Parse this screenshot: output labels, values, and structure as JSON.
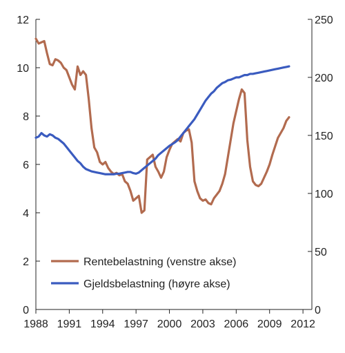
{
  "chart_data": {
    "type": "line",
    "title": "",
    "xlabel": "",
    "ylabel": "",
    "y2label": "",
    "xlim": [
      1988,
      2012.8
    ],
    "ylim": [
      0,
      12
    ],
    "y2lim": [
      0,
      250
    ],
    "x_ticks": [
      "1988",
      "1991",
      "1994",
      "1997",
      "2000",
      "2003",
      "2006",
      "2009",
      "2012"
    ],
    "y_ticks": [
      "0",
      "2",
      "4",
      "6",
      "8",
      "10",
      "12"
    ],
    "y2_ticks": [
      "0",
      "50",
      "100",
      "150",
      "200",
      "250"
    ],
    "grid": false,
    "legend_position": "bottom-left",
    "series": [
      {
        "name": "Rentebelastning (venstre akse)",
        "axis": "left",
        "color": "#b26b4f",
        "points": [
          [
            1988.0,
            11.2
          ],
          [
            1988.25,
            11.0
          ],
          [
            1988.5,
            11.05
          ],
          [
            1988.75,
            11.1
          ],
          [
            1989.0,
            10.6
          ],
          [
            1989.25,
            10.15
          ],
          [
            1989.5,
            10.1
          ],
          [
            1989.75,
            10.35
          ],
          [
            1990.0,
            10.3
          ],
          [
            1990.25,
            10.2
          ],
          [
            1990.5,
            10.0
          ],
          [
            1990.75,
            9.9
          ],
          [
            1991.0,
            9.6
          ],
          [
            1991.25,
            9.3
          ],
          [
            1991.5,
            9.1
          ],
          [
            1991.75,
            10.05
          ],
          [
            1992.0,
            9.7
          ],
          [
            1992.25,
            9.85
          ],
          [
            1992.5,
            9.7
          ],
          [
            1992.75,
            8.7
          ],
          [
            1993.0,
            7.5
          ],
          [
            1993.25,
            6.7
          ],
          [
            1993.5,
            6.5
          ],
          [
            1993.75,
            6.1
          ],
          [
            1994.0,
            6.0
          ],
          [
            1994.25,
            6.1
          ],
          [
            1994.5,
            5.85
          ],
          [
            1994.75,
            5.7
          ],
          [
            1995.0,
            5.6
          ],
          [
            1995.25,
            5.65
          ],
          [
            1995.5,
            5.55
          ],
          [
            1995.75,
            5.6
          ],
          [
            1996.0,
            5.3
          ],
          [
            1996.25,
            5.2
          ],
          [
            1996.5,
            4.9
          ],
          [
            1996.75,
            4.5
          ],
          [
            1997.0,
            4.6
          ],
          [
            1997.25,
            4.7
          ],
          [
            1997.5,
            4.0
          ],
          [
            1997.75,
            4.1
          ],
          [
            1998.0,
            6.2
          ],
          [
            1998.25,
            6.3
          ],
          [
            1998.5,
            6.4
          ],
          [
            1998.75,
            5.9
          ],
          [
            1999.0,
            5.7
          ],
          [
            1999.25,
            5.45
          ],
          [
            1999.5,
            5.7
          ],
          [
            1999.75,
            6.3
          ],
          [
            2000.0,
            6.6
          ],
          [
            2000.25,
            6.85
          ],
          [
            2000.5,
            6.95
          ],
          [
            2000.75,
            7.05
          ],
          [
            2001.0,
            6.95
          ],
          [
            2001.25,
            7.3
          ],
          [
            2001.5,
            7.4
          ],
          [
            2001.75,
            7.45
          ],
          [
            2002.0,
            6.9
          ],
          [
            2002.25,
            5.3
          ],
          [
            2002.5,
            4.9
          ],
          [
            2002.75,
            4.6
          ],
          [
            2003.0,
            4.5
          ],
          [
            2003.25,
            4.55
          ],
          [
            2003.5,
            4.4
          ],
          [
            2003.75,
            4.35
          ],
          [
            2004.0,
            4.6
          ],
          [
            2004.25,
            4.75
          ],
          [
            2004.5,
            4.9
          ],
          [
            2004.75,
            5.2
          ],
          [
            2005.0,
            5.6
          ],
          [
            2005.25,
            6.3
          ],
          [
            2005.5,
            7.0
          ],
          [
            2005.75,
            7.7
          ],
          [
            2006.0,
            8.2
          ],
          [
            2006.25,
            8.7
          ],
          [
            2006.5,
            9.1
          ],
          [
            2006.75,
            8.95
          ],
          [
            2007.0,
            7.0
          ],
          [
            2007.25,
            5.9
          ],
          [
            2007.5,
            5.3
          ],
          [
            2007.75,
            5.15
          ],
          [
            2008.0,
            5.1
          ],
          [
            2008.25,
            5.2
          ],
          [
            2008.5,
            5.45
          ],
          [
            2008.75,
            5.7
          ],
          [
            2009.0,
            6.0
          ],
          [
            2009.25,
            6.4
          ],
          [
            2009.5,
            6.75
          ],
          [
            2009.75,
            7.1
          ],
          [
            2010.0,
            7.3
          ],
          [
            2010.25,
            7.5
          ],
          [
            2010.5,
            7.8
          ],
          [
            2010.75,
            7.95
          ]
        ]
      },
      {
        "name": "Gjeldsbelastning (høyre akse)",
        "axis": "right",
        "color": "#3a5bbf",
        "points": [
          [
            1988.0,
            148
          ],
          [
            1988.25,
            149
          ],
          [
            1988.5,
            152
          ],
          [
            1988.75,
            150
          ],
          [
            1989.0,
            149
          ],
          [
            1989.25,
            151
          ],
          [
            1989.5,
            150
          ],
          [
            1989.75,
            148
          ],
          [
            1990.0,
            147
          ],
          [
            1990.25,
            145
          ],
          [
            1990.5,
            143
          ],
          [
            1990.75,
            140
          ],
          [
            1991.0,
            137
          ],
          [
            1991.25,
            134
          ],
          [
            1991.5,
            131
          ],
          [
            1991.75,
            128
          ],
          [
            1992.0,
            126
          ],
          [
            1992.25,
            123
          ],
          [
            1992.5,
            121
          ],
          [
            1992.75,
            120
          ],
          [
            1993.0,
            119
          ],
          [
            1993.25,
            118.5
          ],
          [
            1993.5,
            118
          ],
          [
            1993.75,
            117.5
          ],
          [
            1994.0,
            117
          ],
          [
            1994.25,
            116.5
          ],
          [
            1994.5,
            116.5
          ],
          [
            1994.75,
            116.5
          ],
          [
            1995.0,
            116.5
          ],
          [
            1995.25,
            117
          ],
          [
            1995.5,
            117
          ],
          [
            1995.75,
            117.5
          ],
          [
            1996.0,
            118
          ],
          [
            1996.25,
            118.5
          ],
          [
            1996.5,
            118.5
          ],
          [
            1996.75,
            117.5
          ],
          [
            1997.0,
            117
          ],
          [
            1997.25,
            118
          ],
          [
            1997.5,
            120
          ],
          [
            1997.75,
            122
          ],
          [
            1998.0,
            124
          ],
          [
            1998.25,
            126
          ],
          [
            1998.5,
            128
          ],
          [
            1998.75,
            130
          ],
          [
            1999.0,
            133
          ],
          [
            1999.25,
            135
          ],
          [
            1999.5,
            137
          ],
          [
            1999.75,
            139
          ],
          [
            2000.0,
            141
          ],
          [
            2000.25,
            142.5
          ],
          [
            2000.5,
            144
          ],
          [
            2000.75,
            146
          ],
          [
            2001.0,
            149
          ],
          [
            2001.25,
            152
          ],
          [
            2001.5,
            155
          ],
          [
            2001.75,
            158
          ],
          [
            2002.0,
            161
          ],
          [
            2002.25,
            164
          ],
          [
            2002.5,
            168
          ],
          [
            2002.75,
            172
          ],
          [
            2003.0,
            176
          ],
          [
            2003.25,
            180
          ],
          [
            2003.5,
            183
          ],
          [
            2003.75,
            186
          ],
          [
            2004.0,
            188
          ],
          [
            2004.25,
            191
          ],
          [
            2004.5,
            193
          ],
          [
            2004.75,
            195
          ],
          [
            2005.0,
            196
          ],
          [
            2005.25,
            197.5
          ],
          [
            2005.5,
            198
          ],
          [
            2005.75,
            199
          ],
          [
            2006.0,
            200
          ],
          [
            2006.25,
            200
          ],
          [
            2006.5,
            201
          ],
          [
            2006.75,
            202
          ],
          [
            2007.0,
            202
          ],
          [
            2007.25,
            203
          ],
          [
            2007.5,
            203
          ],
          [
            2007.75,
            203.5
          ],
          [
            2008.0,
            204
          ],
          [
            2008.25,
            204.5
          ],
          [
            2008.5,
            205
          ],
          [
            2008.75,
            205.5
          ],
          [
            2009.0,
            206
          ],
          [
            2009.25,
            206.5
          ],
          [
            2009.5,
            207
          ],
          [
            2009.75,
            207.5
          ],
          [
            2010.0,
            208
          ],
          [
            2010.25,
            208.5
          ],
          [
            2010.5,
            209
          ],
          [
            2010.75,
            209.5
          ]
        ]
      }
    ]
  }
}
